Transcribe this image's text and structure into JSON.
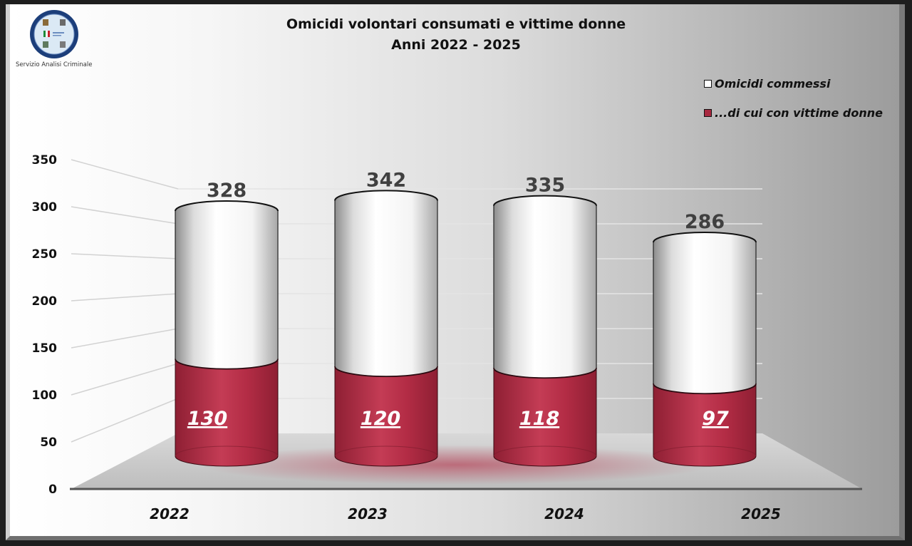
{
  "header": {
    "logo_caption": "Servizio Analisi Criminale",
    "title_line1": "Omicidi volontari consumati e vittime donne",
    "title_line2": "Anni 2022 - 2025"
  },
  "legend": [
    {
      "label": "Omicidi commessi",
      "color": "#ffffff"
    },
    {
      "label": "...di cui con vittime donne",
      "color": "#a8283f"
    }
  ],
  "colors": {
    "total": "#ffffff",
    "women": "#b22a42",
    "women_dark": "#8e1f33"
  },
  "chart_data": {
    "type": "bar",
    "subtype": "3d-cylinder-overlapped",
    "title": "Omicidi volontari consumati e vittime donne - Anni 2022 - 2025",
    "categories": [
      "2022",
      "2023",
      "2024",
      "2025"
    ],
    "series": [
      {
        "name": "Omicidi commessi",
        "values": [
          328,
          342,
          335,
          286
        ]
      },
      {
        "name": "...di cui con vittime donne",
        "values": [
          130,
          120,
          118,
          97
        ]
      }
    ],
    "xlabel": "",
    "ylabel": "",
    "ylim": [
      0,
      350
    ],
    "yticks": [
      0,
      50,
      100,
      150,
      200,
      250,
      300,
      350
    ],
    "grid": true,
    "legend_position": "top-right"
  }
}
